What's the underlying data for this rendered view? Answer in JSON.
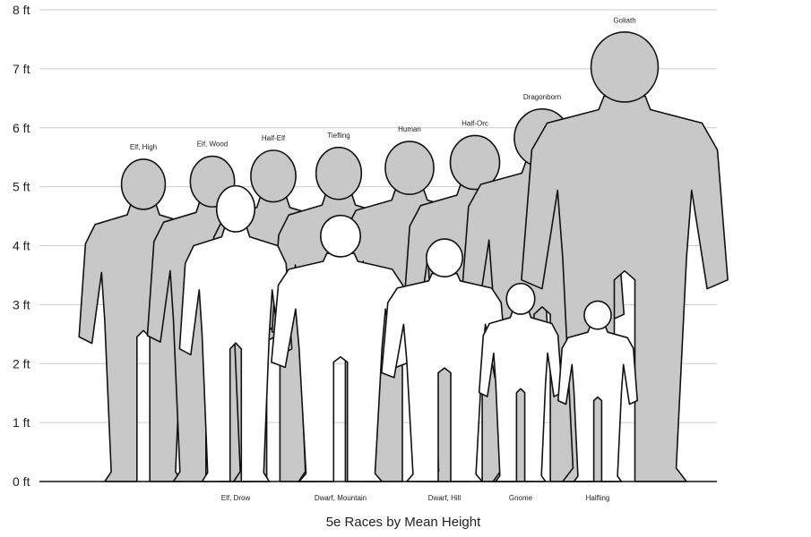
{
  "chart_data": {
    "type": "bar",
    "title": "5e Races by Mean Height",
    "ylim": [
      0,
      8
    ],
    "ytick_labels": [
      "0 ft",
      "1 ft",
      "2 ft",
      "3 ft",
      "4 ft",
      "5 ft",
      "6 ft",
      "7 ft",
      "8 ft"
    ],
    "grid": true,
    "unit": "ft",
    "back_row": [
      {
        "name": "Elf, High",
        "height": 5.45
      },
      {
        "name": "Elf, Wood",
        "height": 5.5
      },
      {
        "name": "Half-Elf",
        "height": 5.6
      },
      {
        "name": "Tiefling",
        "height": 5.65
      },
      {
        "name": "Human",
        "height": 5.75
      },
      {
        "name": "Half-Orc",
        "height": 5.85
      },
      {
        "name": "Dragonborn",
        "height": 6.3
      },
      {
        "name": "Goliath",
        "height": 7.6
      }
    ],
    "front_row": [
      {
        "name": "Elf, Drow",
        "height": 5.0
      },
      {
        "name": "Dwarf, Mountain",
        "height": 4.5
      },
      {
        "name": "Dwarf, Hill",
        "height": 4.1
      },
      {
        "name": "Gnome",
        "height": 3.35
      },
      {
        "name": "Halfling",
        "height": 3.05
      }
    ],
    "colors": {
      "back_fill": "#c8c8c8",
      "front_fill": "#ffffff",
      "outline": "#111111",
      "grid": "#cccccc"
    }
  }
}
